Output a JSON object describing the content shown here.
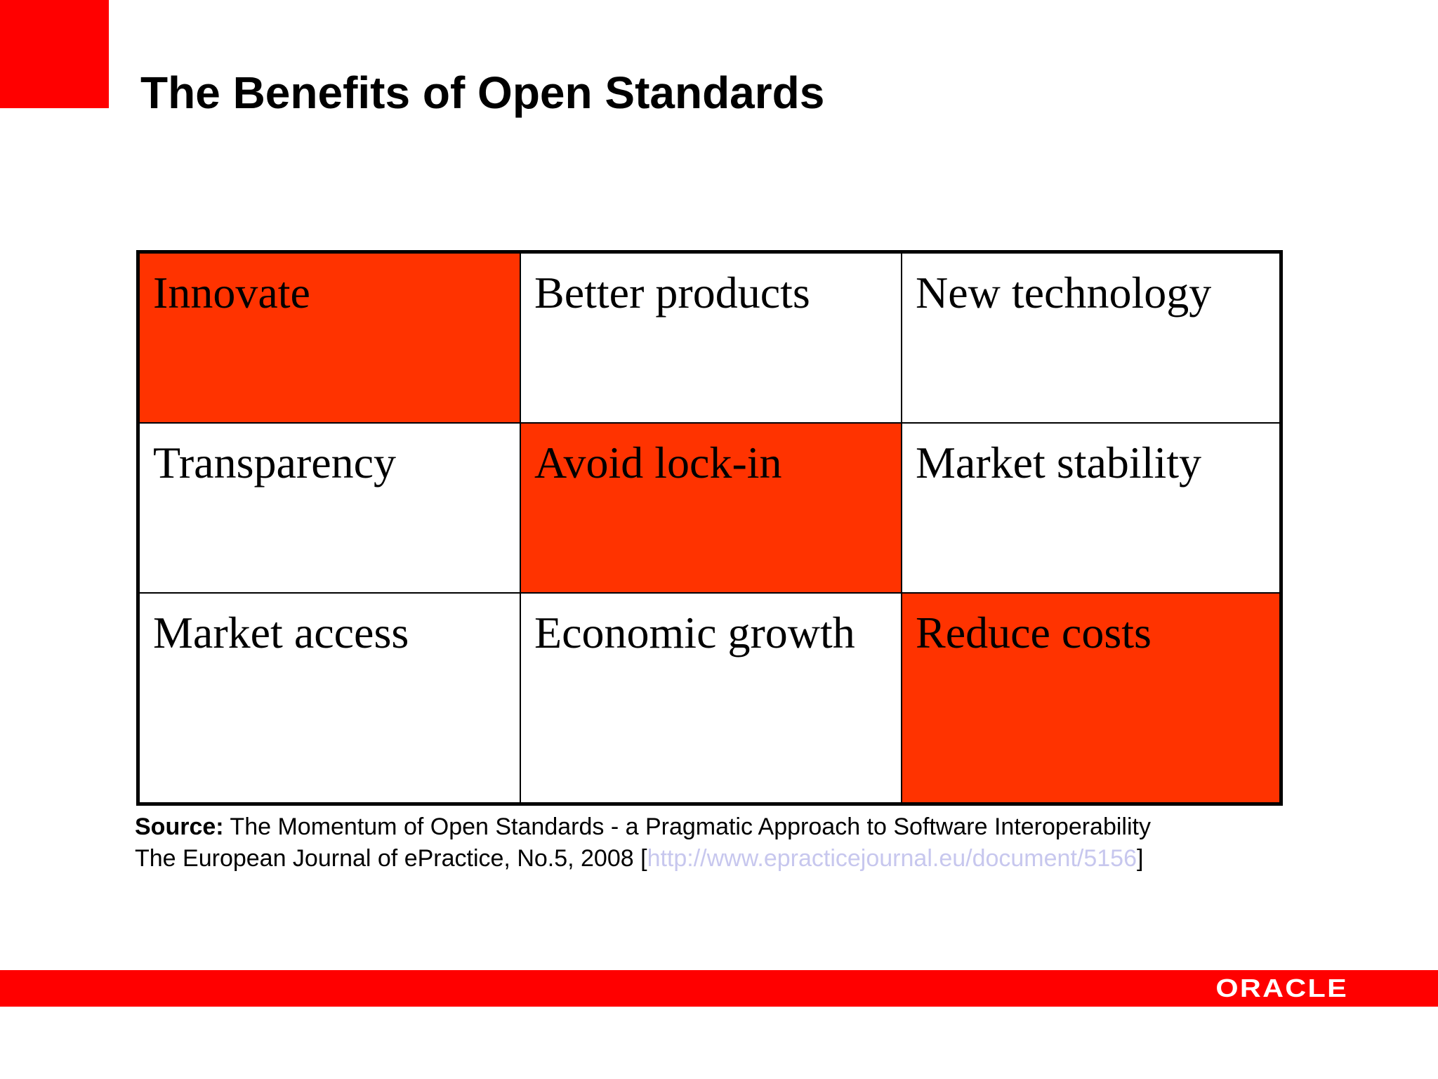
{
  "slide": {
    "title": "The Benefits of Open Standards"
  },
  "grid": {
    "cells": [
      {
        "text": "Innovate",
        "highlighted": true
      },
      {
        "text": "Better products",
        "highlighted": false
      },
      {
        "text": "New technology",
        "highlighted": false
      },
      {
        "text": "Transparency",
        "highlighted": false
      },
      {
        "text": "Avoid lock-in",
        "highlighted": true
      },
      {
        "text": "Market stability",
        "highlighted": false
      },
      {
        "text": "Market access",
        "highlighted": false
      },
      {
        "text": "Economic growth",
        "highlighted": false
      },
      {
        "text": "Reduce costs",
        "highlighted": true
      }
    ]
  },
  "source": {
    "label": "Source:",
    "line1": " The Momentum of Open Standards - a Pragmatic Approach to Software Interoperability",
    "line2_prefix": "The European Journal of ePractice, No.5, 2008 [",
    "link": "http://www.epracticejournal.eu/document/5156",
    "line2_suffix": "]"
  },
  "footer": {
    "logo_text": "ORACLE"
  },
  "colors": {
    "brand_red": "#ff0000",
    "highlight": "#ff3300",
    "link": "#c7c7ee"
  }
}
